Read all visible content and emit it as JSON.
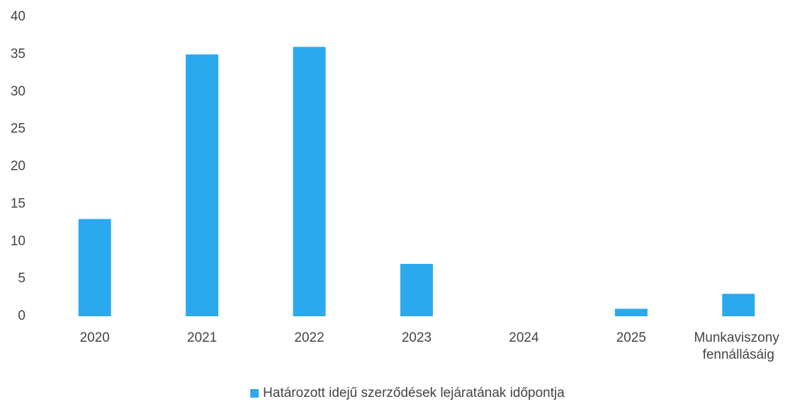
{
  "chart_data": {
    "type": "bar",
    "categories": [
      "2020",
      "2021",
      "2022",
      "2023",
      "2024",
      "2025",
      "Munkaviszony fennállásáig"
    ],
    "series": [
      {
        "name": "Határozott idejű szerződések lejáratának időpontja",
        "color": "#2ba9ef",
        "values": [
          13,
          35,
          36,
          7,
          0,
          1,
          3
        ]
      }
    ],
    "ylim": [
      0,
      40
    ],
    "yticks": [
      0,
      5,
      10,
      15,
      20,
      25,
      30,
      35,
      40
    ],
    "grid": false,
    "legend": "bottom"
  }
}
